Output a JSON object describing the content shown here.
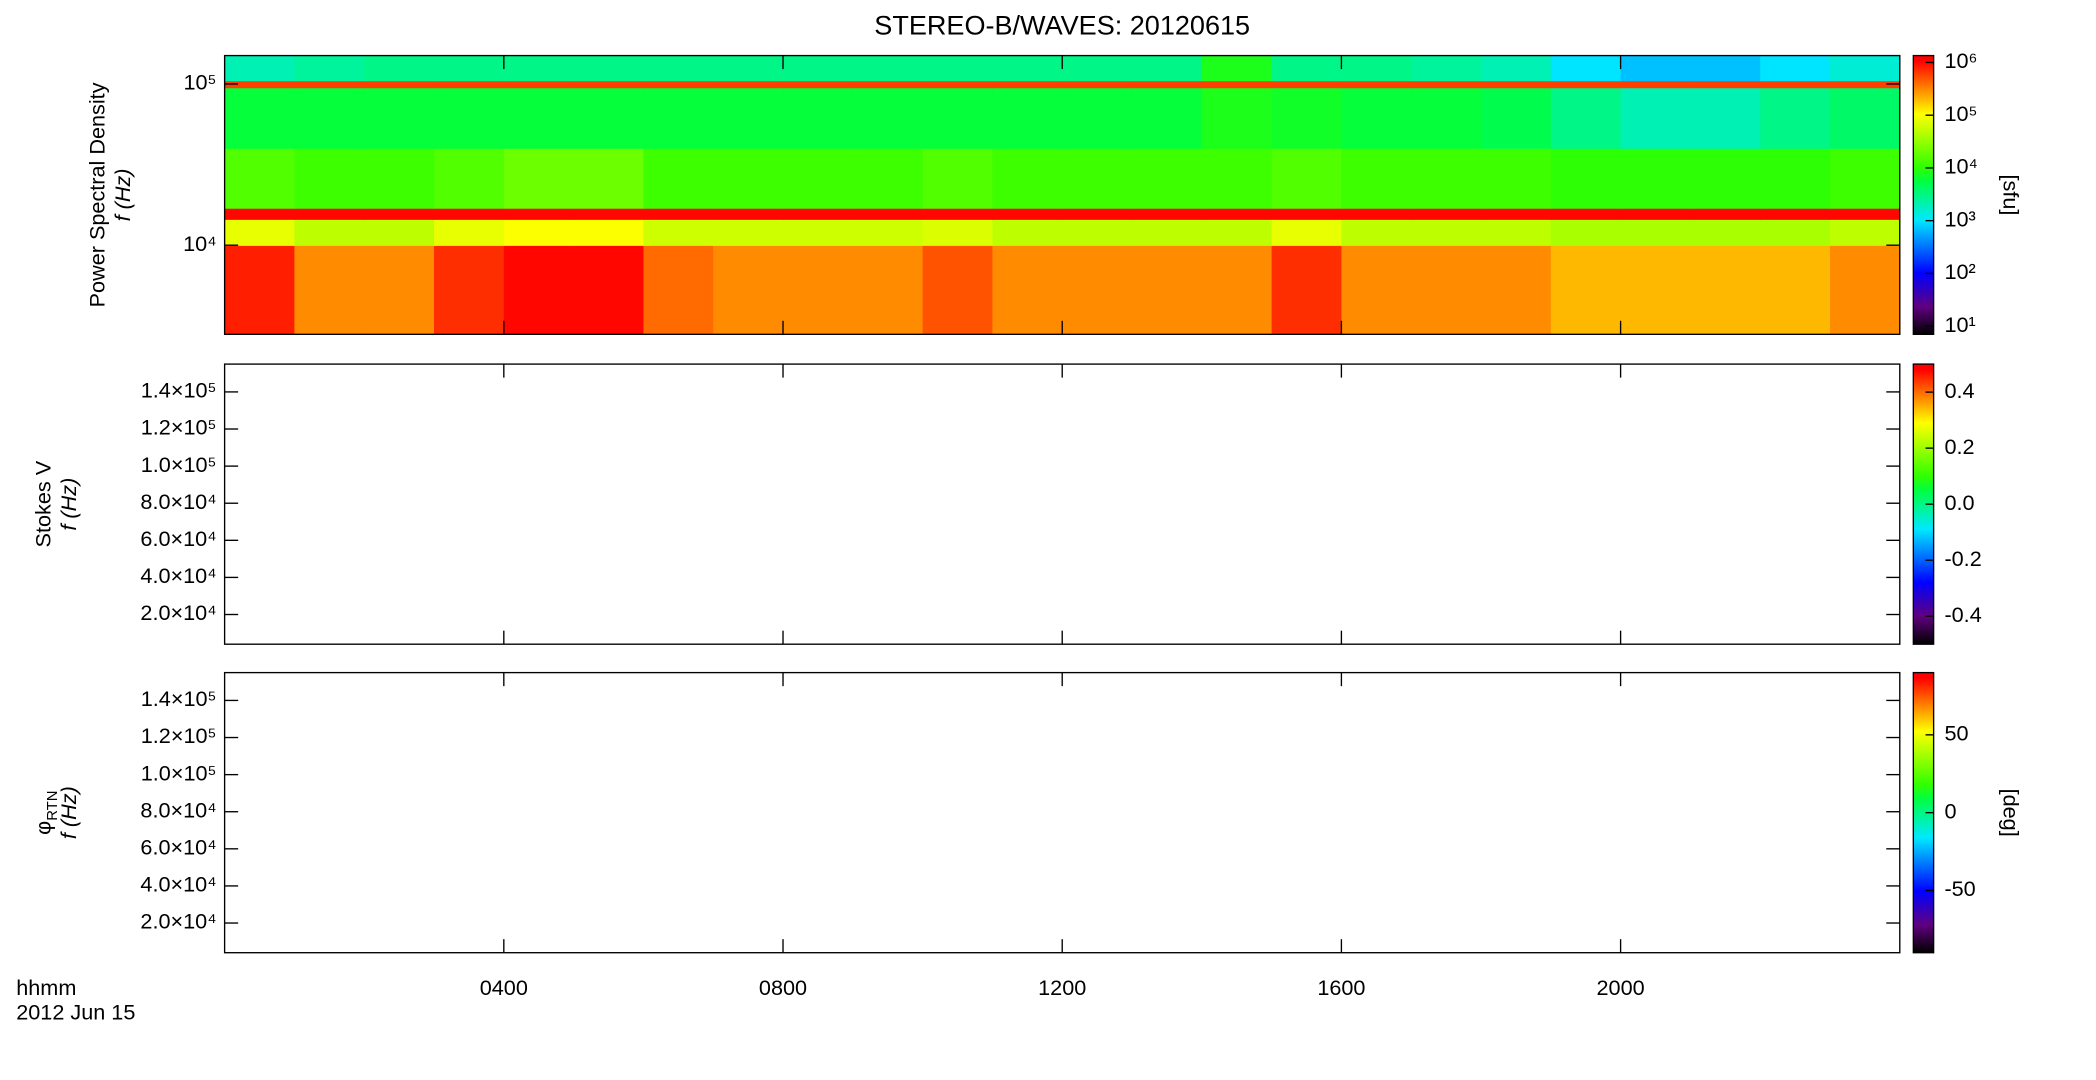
{
  "chart_data": [
    {
      "type": "heatmap",
      "title": "STEREO-B/WAVES: 20120615",
      "ylabel": [
        "Power Spectral Density",
        "f (Hz)"
      ],
      "xlim": [
        0,
        24
      ],
      "xticks": [
        4,
        8,
        12,
        16,
        20
      ],
      "ylim": [
        2800,
        150000
      ],
      "ylog": true,
      "yticks": [
        {
          "value": 10000,
          "label": "10⁴"
        },
        {
          "value": 100000,
          "label": "10⁵"
        }
      ],
      "clim": [
        7,
        1350000
      ],
      "clog": true,
      "clabel": "[sfu]",
      "cticks": [
        {
          "value": 10,
          "label": "10¹"
        },
        {
          "value": 100,
          "label": "10²"
        },
        {
          "value": 1000,
          "label": "10³"
        },
        {
          "value": 10000,
          "label": "10⁴"
        },
        {
          "value": 100000,
          "label": "10⁵"
        },
        {
          "value": 1000000,
          "label": "10⁶"
        }
      ],
      "x_edges": [
        0,
        1,
        2,
        3,
        4,
        5,
        6,
        7,
        8,
        9,
        10,
        11,
        12,
        13,
        14,
        15,
        16,
        17,
        18,
        19,
        20,
        21,
        22,
        23,
        24
      ],
      "y_edges": [
        2800,
        10000,
        14500,
        17000,
        40000,
        95000,
        105000,
        150000
      ],
      "values": [
        [
          800000,
          300000,
          300000,
          700000,
          1000000,
          1000000,
          400000,
          300000,
          300000,
          300000,
          500000,
          300000,
          300000,
          300000,
          300000,
          700000,
          300000,
          300000,
          300000,
          200000,
          200000,
          200000,
          200000,
          300000
        ],
        [
          80000,
          50000,
          50000,
          80000,
          100000,
          100000,
          60000,
          60000,
          60000,
          60000,
          70000,
          50000,
          50000,
          50000,
          50000,
          80000,
          50000,
          50000,
          50000,
          40000,
          40000,
          40000,
          40000,
          50000
        ],
        [
          1000000,
          1000000,
          1000000,
          1000000,
          1000000,
          1000000,
          1000000,
          1000000,
          1000000,
          1000000,
          1000000,
          1000000,
          1000000,
          1000000,
          1000000,
          1000000,
          1000000,
          1000000,
          1000000,
          1000000,
          1000000,
          1000000,
          1000000,
          1000000
        ],
        [
          15000,
          12000,
          12000,
          15000,
          20000,
          20000,
          12000,
          12000,
          12000,
          12000,
          15000,
          12000,
          12000,
          12000,
          12000,
          15000,
          12000,
          12000,
          12000,
          10000,
          10000,
          10000,
          10000,
          12000
        ],
        [
          6000,
          6000,
          6000,
          6000,
          6000,
          6000,
          6000,
          6000,
          6000,
          6000,
          6000,
          6000,
          6000,
          6000,
          8000,
          7000,
          6000,
          6000,
          5000,
          3000,
          2000,
          2000,
          3000,
          4000
        ],
        [
          600000,
          600000,
          600000,
          600000,
          600000,
          600000,
          600000,
          600000,
          600000,
          600000,
          600000,
          600000,
          600000,
          600000,
          600000,
          600000,
          600000,
          600000,
          600000,
          600000,
          600000,
          600000,
          600000,
          600000
        ],
        [
          2000,
          2500,
          3000,
          3000,
          3000,
          3000,
          3000,
          3000,
          3000,
          3000,
          3000,
          3000,
          3000,
          3000,
          8000,
          3000,
          3000,
          2500,
          2000,
          1000,
          700,
          700,
          1000,
          1500
        ]
      ]
    },
    {
      "type": "heatmap",
      "ylabel": [
        "Stokes V",
        "f (Hz)"
      ],
      "xlim": [
        0,
        24
      ],
      "xticks": [
        4,
        8,
        12,
        16,
        20
      ],
      "ylim": [
        4000,
        155000
      ],
      "yticks": [
        {
          "value": 20000,
          "label": "2.0×10⁴"
        },
        {
          "value": 40000,
          "label": "4.0×10⁴"
        },
        {
          "value": 60000,
          "label": "6.0×10⁴"
        },
        {
          "value": 80000,
          "label": "8.0×10⁴"
        },
        {
          "value": 100000,
          "label": "1.0×10⁵"
        },
        {
          "value": 120000,
          "label": "1.2×10⁵"
        },
        {
          "value": 140000,
          "label": "1.4×10⁵"
        }
      ],
      "clim": [
        -0.5,
        0.5
      ],
      "cticks": [
        -0.4,
        -0.2,
        {
          "value": 0,
          "label": "0.0"
        },
        0.2,
        0.4
      ]
    },
    {
      "type": "heatmap",
      "ylabel": [
        "φ",
        "f (Hz)"
      ],
      "ylabel_sub": "RTN",
      "xlabel": [
        "hhmm",
        "2012 Jun 15"
      ],
      "xlim": [
        0,
        24
      ],
      "xticks": [
        {
          "value": 4,
          "label": "0400"
        },
        {
          "value": 8,
          "label": "0800"
        },
        {
          "value": 12,
          "label": "1200"
        },
        {
          "value": 16,
          "label": "1600"
        },
        {
          "value": 20,
          "label": "2000"
        }
      ],
      "ylim": [
        4000,
        155000
      ],
      "yticks": [
        {
          "value": 20000,
          "label": "2.0×10⁴"
        },
        {
          "value": 40000,
          "label": "4.0×10⁴"
        },
        {
          "value": 60000,
          "label": "6.0×10⁴"
        },
        {
          "value": 80000,
          "label": "8.0×10⁴"
        },
        {
          "value": 100000,
          "label": "1.0×10⁵"
        },
        {
          "value": 120000,
          "label": "1.2×10⁵"
        },
        {
          "value": 140000,
          "label": "1.4×10⁵"
        }
      ],
      "clim": [
        -90,
        90
      ],
      "clabel": "[deg]",
      "cticks": [
        -50,
        0,
        50
      ]
    }
  ]
}
